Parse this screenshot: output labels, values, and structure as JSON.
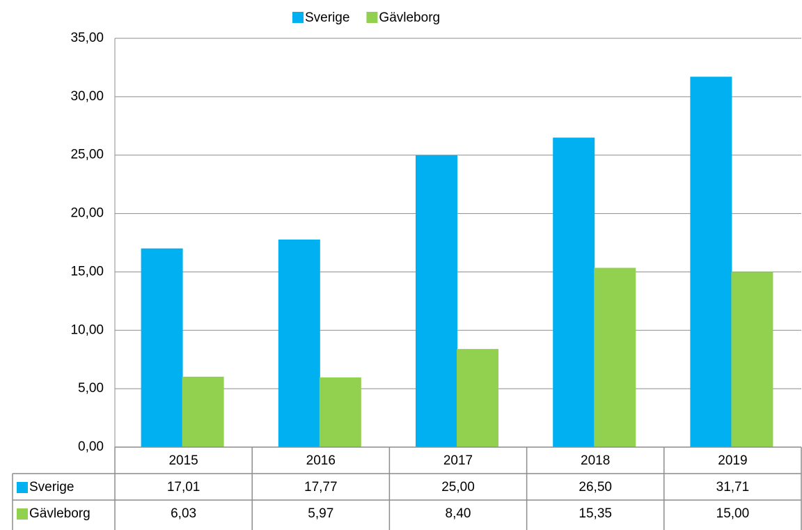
{
  "chart_data": {
    "type": "bar",
    "categories": [
      "2015",
      "2016",
      "2017",
      "2018",
      "2019"
    ],
    "series": [
      {
        "name": "Sverige",
        "color": "#00b0f0",
        "values": [
          17.01,
          17.77,
          25.0,
          26.5,
          31.71
        ],
        "value_labels": [
          "17,01",
          "17,77",
          "25,00",
          "26,50",
          "31,71"
        ]
      },
      {
        "name": "Gävleborg",
        "color": "#92d050",
        "values": [
          6.03,
          5.97,
          8.4,
          15.35,
          15.0
        ],
        "value_labels": [
          "6,03",
          "5,97",
          "8,40",
          "15,35",
          "15,00"
        ]
      }
    ],
    "ylim": [
      0,
      35
    ],
    "yticks": [
      {
        "value": 0,
        "label": "0,00"
      },
      {
        "value": 5,
        "label": "5,00"
      },
      {
        "value": 10,
        "label": "10,00"
      },
      {
        "value": 15,
        "label": "15,00"
      },
      {
        "value": 20,
        "label": "20,00"
      },
      {
        "value": 25,
        "label": "25,00"
      },
      {
        "value": 30,
        "label": "30,00"
      },
      {
        "value": 35,
        "label": "35,00"
      }
    ],
    "grid": true,
    "legend": "top"
  }
}
